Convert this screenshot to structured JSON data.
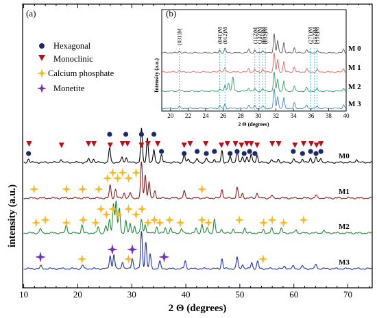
{
  "chart_data": [
    {
      "id": "main",
      "type": "line",
      "panel_label": "(a)",
      "xlabel": "2 Θ (degrees)",
      "ylabel": "intensity (a.u.)",
      "xlim": [
        10,
        75
      ],
      "xticks": [
        10,
        20,
        30,
        40,
        50,
        60,
        70
      ],
      "yticks_shown": false,
      "legend": {
        "placement": "top-left",
        "entries": [
          {
            "marker": "hexagonal",
            "label": "Hexagonal",
            "color": "#1a2a6c"
          },
          {
            "marker": "monoclinic",
            "label": "Monoclinic",
            "color": "#b3121a"
          },
          {
            "marker": "calcium-phosphate",
            "label": "Calcium phosphate",
            "color": "#f7b926"
          },
          {
            "marker": "monetite",
            "label": "Monetite",
            "color": "#7a2fb0"
          }
        ]
      },
      "series": [
        {
          "name": "M0",
          "color": "#000000",
          "peaks": [
            [
              10.9,
              4
            ],
            [
              16.9,
              4
            ],
            [
              22.0,
              4
            ],
            [
              22.9,
              4
            ],
            [
              25.9,
              16
            ],
            [
              28.2,
              6
            ],
            [
              29.0,
              6
            ],
            [
              31.8,
              38
            ],
            [
              32.9,
              28
            ],
            [
              34.1,
              14
            ],
            [
              35.5,
              9
            ],
            [
              39.7,
              9
            ],
            [
              40.5,
              4
            ],
            [
              42.1,
              4
            ],
            [
              43.8,
              5
            ],
            [
              45.3,
              4
            ],
            [
              46.7,
              13
            ],
            [
              48.2,
              6
            ],
            [
              49.5,
              14
            ],
            [
              50.5,
              6
            ],
            [
              51.3,
              7
            ],
            [
              52.1,
              9
            ],
            [
              53.2,
              8
            ],
            [
              55.9,
              3
            ],
            [
              57.1,
              4
            ],
            [
              60.0,
              4
            ],
            [
              61.6,
              4
            ],
            [
              63.1,
              5
            ],
            [
              64.1,
              6
            ],
            [
              65.0,
              5
            ],
            [
              71.6,
              4
            ]
          ]
        },
        {
          "name": "M1",
          "color": "#8b1a1a",
          "peaks": [
            [
              26.0,
              14
            ],
            [
              27.0,
              10
            ],
            [
              28.6,
              6
            ],
            [
              29.7,
              6
            ],
            [
              31.8,
              40
            ],
            [
              32.5,
              26
            ],
            [
              33.2,
              18
            ],
            [
              34.3,
              8
            ],
            [
              39.7,
              8
            ],
            [
              46.7,
              10
            ],
            [
              49.5,
              12
            ],
            [
              50.5,
              5
            ],
            [
              53.2,
              6
            ],
            [
              55.9,
              3
            ],
            [
              64.1,
              3
            ]
          ]
        },
        {
          "name": "M2",
          "color": "#1a8a3a",
          "peaks": [
            [
              13.1,
              5
            ],
            [
              17.9,
              10
            ],
            [
              20.8,
              9
            ],
            [
              23.8,
              7
            ],
            [
              25.2,
              8
            ],
            [
              25.9,
              15
            ],
            [
              26.6,
              33
            ],
            [
              27.1,
              36
            ],
            [
              27.7,
              28
            ],
            [
              28.9,
              14
            ],
            [
              29.7,
              10
            ],
            [
              30.5,
              8
            ],
            [
              31.8,
              15
            ],
            [
              32.5,
              10
            ],
            [
              34.6,
              7
            ],
            [
              36.2,
              6
            ],
            [
              37.2,
              5
            ],
            [
              39.2,
              5
            ],
            [
              41.9,
              5
            ],
            [
              43.0,
              10
            ],
            [
              44.0,
              6
            ],
            [
              45.3,
              15
            ],
            [
              46.6,
              5
            ],
            [
              48.8,
              5
            ],
            [
              50.9,
              6
            ],
            [
              54.4,
              4
            ],
            [
              55.9,
              5
            ],
            [
              57.7,
              5
            ],
            [
              60.4,
              4
            ],
            [
              65.5,
              3
            ]
          ]
        },
        {
          "name": "M3",
          "color": "#1a2fae",
          "peaks": [
            [
              13.2,
              3
            ],
            [
              20.9,
              4
            ],
            [
              26.0,
              15
            ],
            [
              26.7,
              16
            ],
            [
              28.3,
              8
            ],
            [
              30.1,
              12
            ],
            [
              31.8,
              42
            ],
            [
              32.6,
              30
            ],
            [
              33.4,
              16
            ],
            [
              35.2,
              8
            ],
            [
              39.9,
              9
            ],
            [
              46.7,
              11
            ],
            [
              49.5,
              13
            ],
            [
              50.5,
              5
            ],
            [
              52.2,
              7
            ],
            [
              53.3,
              8
            ],
            [
              58.3,
              3
            ],
            [
              59.9,
              3
            ],
            [
              61.6,
              3
            ],
            [
              64.1,
              5
            ]
          ]
        }
      ],
      "phase_markers": {
        "M0": {
          "hexagonal": [
            10.9,
            25.9,
            28.9,
            31.8,
            34.1,
            35.5,
            39.7,
            42.1,
            43.8,
            45.3,
            48.2,
            49.5,
            50.8,
            51.8,
            52.8,
            59.9,
            61.6,
            63.1,
            64.1,
            65.0
          ],
          "monoclinic": [
            11.0,
            17.0,
            22.0,
            23.0,
            26.0,
            28.3,
            29.2,
            31.8,
            33.0,
            34.8,
            39.7,
            40.8,
            43.7,
            46.6,
            47.7,
            49.2,
            50.3,
            51.3,
            52.1,
            53.2,
            56.0,
            57.2,
            60.2,
            61.8,
            63.2,
            64.2,
            65.0
          ]
        },
        "M1": {
          "calcium_phosphate": [
            11.9,
            17.9,
            20.9,
            23.9,
            25.5,
            26.5,
            27.4,
            28.3,
            29.4,
            30.8,
            43.0
          ]
        },
        "M2": {
          "calcium_phosphate": [
            12.3,
            14.0,
            17.9,
            21.0,
            23.3,
            24.3,
            25.3,
            26.5,
            27.5,
            29.4,
            30.8,
            31.9,
            33.0,
            34.2,
            35.2,
            37.0,
            39.0,
            43.0,
            44.2,
            49.9,
            54.4,
            56.0,
            58.1,
            61.8
          ]
        },
        "M3": {
          "calcium_phosphate": [
            20.8,
            29.4,
            54.3
          ],
          "monetite": [
            13.1,
            26.4,
            30.1,
            36.0
          ]
        }
      }
    },
    {
      "id": "inset",
      "type": "line",
      "panel_label": "(b)",
      "xlabel": "2 Θ (degrees)",
      "ylabel": "Intensity (a.u.)",
      "xlim": [
        19,
        40
      ],
      "xticks": [
        20,
        22,
        24,
        26,
        28,
        30,
        32,
        34,
        36,
        38,
        40
      ],
      "annotations": [
        {
          "text": "(031)M",
          "x": 21.0
        },
        {
          "text": "(041)M",
          "x": 25.6
        },
        {
          "text": "(012)M",
          "x": 26.2
        },
        {
          "text": "(112)M",
          "x": 29.6
        },
        {
          "text": "(132)M",
          "x": 30.1
        },
        {
          "text": "(051)M",
          "x": 30.5
        },
        {
          "text": "(032)M",
          "x": 30.8
        },
        {
          "text": "(271)M",
          "x": 35.9
        },
        {
          "text": "(212)M",
          "x": 36.4
        },
        {
          "text": "(151)M",
          "x": 36.7
        }
      ],
      "series": [
        {
          "name": "M 0",
          "color": "#555555"
        },
        {
          "name": "M 1",
          "color": "#e86060"
        },
        {
          "name": "M 2",
          "color": "#2e9e6a"
        },
        {
          "name": "M 3",
          "color": "#3a86c4"
        }
      ]
    }
  ]
}
